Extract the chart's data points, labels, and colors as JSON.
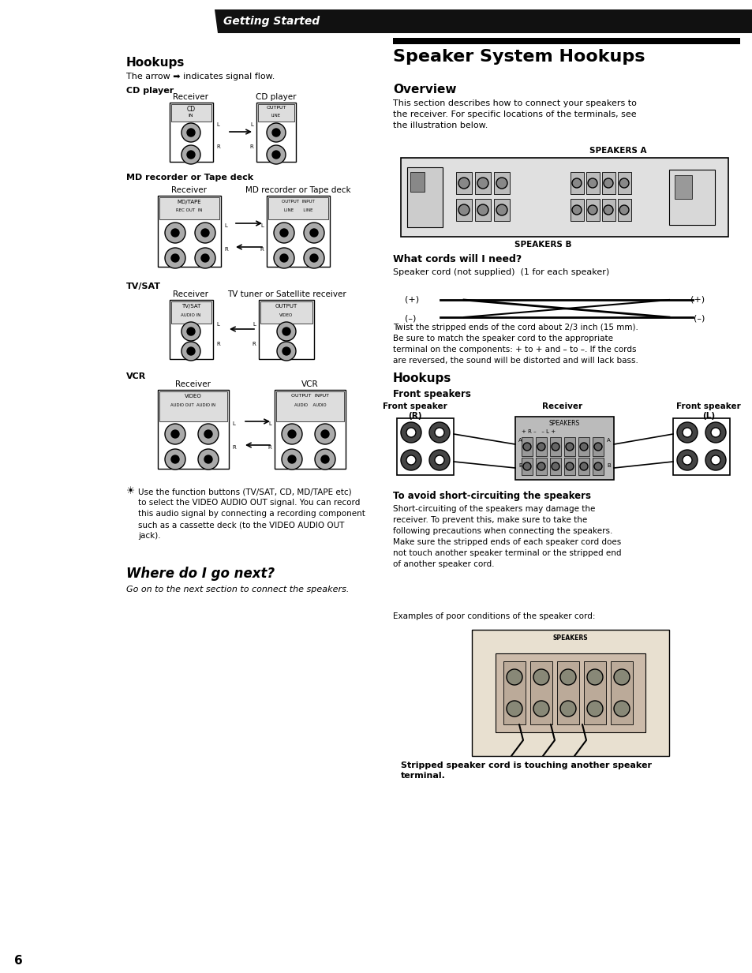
{
  "bg_color": "#ffffff",
  "page_width": 9.54,
  "page_height": 12.33,
  "header_bar_color": "#111111",
  "header_text": "Getting Started",
  "header_text_color": "#ffffff",
  "hookups_title": "Hookups",
  "signal_flow_text": "The arrow ➡ indicates signal flow.",
  "cd_player_label": "CD player",
  "md_tape_label": "MD recorder or Tape deck",
  "tvsat_label": "TV/SAT",
  "vcr_label": "VCR",
  "note_text": "Use the function buttons (TV/SAT, CD, MD/TAPE etc)\nto select the VIDEO AUDIO OUT signal. You can record\nthis audio signal by connecting a recording component\nsuch as a cassette deck (to the VIDEO AUDIO OUT\njack).",
  "where_title": "Where do I go next?",
  "where_italic": "Go on to the next section to connect the speakers.",
  "right_main_title": "Speaker System Hookups",
  "overview_title": "Overview",
  "overview_text": "This section describes how to connect your speakers to\nthe receiver. For specific locations of the terminals, see\nthe illustration below.",
  "speakers_a_label": "SPEAKERS A",
  "speakers_b_label": "SPEAKERS B",
  "what_cords_title": "What cords will I need?",
  "cord_text": "Speaker cord (not supplied)  (1 for each speaker)",
  "twist_text": "Twist the stripped ends of the cord about 2/3 inch (15 mm).\nBe sure to match the speaker cord to the appropriate\nterminal on the components: + to + and – to –. If the cords\nare reversed, the sound will be distorted and will lack bass.",
  "right_hookups_title": "Hookups",
  "front_speakers_label": "Front speakers",
  "avoid_title": "To avoid short-circuiting the speakers",
  "avoid_text": "Short-circuiting of the speakers may damage the\nreceiver. To prevent this, make sure to take the\nfollowing precautions when connecting the speakers.\nMake sure the stripped ends of each speaker cord does\nnot touch another speaker terminal or the stripped end\nof another speaker cord.",
  "examples_text": "Examples of poor conditions of the speaker cord:",
  "stripped_caption": "Stripped speaker cord is touching another speaker\nterminal.",
  "page_number": "6"
}
